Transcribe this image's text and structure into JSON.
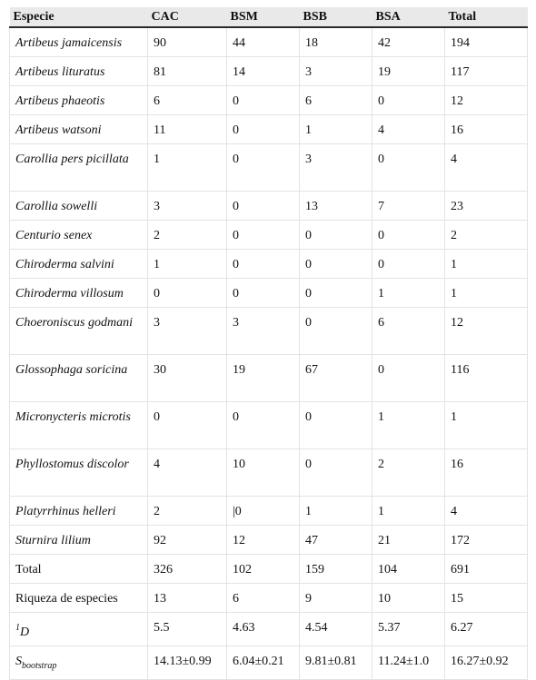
{
  "table": {
    "headers": [
      "Especie",
      "CAC",
      "BSM",
      "BSB",
      "BSA",
      "Total"
    ],
    "rows": [
      {
        "name": "Artibeus jamaicensis",
        "v": [
          "90",
          "44",
          "18",
          "42",
          "194"
        ]
      },
      {
        "name": "Artibeus lituratus",
        "v": [
          "81",
          "14",
          "3",
          "19",
          "117"
        ]
      },
      {
        "name": "Artibeus phaeotis",
        "v": [
          "6",
          "0",
          "6",
          "0",
          "12"
        ]
      },
      {
        "name": "Artibeus watsoni",
        "v": [
          "11",
          "0",
          "1",
          "4",
          "16"
        ]
      },
      {
        "name": "Carollia pers picillata",
        "v": [
          "1",
          "0",
          "3",
          "0",
          "4"
        ]
      },
      {
        "name": "Carollia sowelli",
        "v": [
          "3",
          "0",
          "13",
          "7",
          "23"
        ]
      },
      {
        "name": "Centurio senex",
        "v": [
          "2",
          "0",
          "0",
          "0",
          "2"
        ]
      },
      {
        "name": "Chiroderma salvini",
        "v": [
          "1",
          "0",
          "0",
          "0",
          "1"
        ]
      },
      {
        "name": "Chiroderma villosum",
        "v": [
          "0",
          "0",
          "0",
          "1",
          "1"
        ]
      },
      {
        "name": "Choeroniscus godmani",
        "v": [
          "3",
          "3",
          "0",
          "6",
          "12"
        ]
      },
      {
        "name": "Glossophaga soricina",
        "v": [
          "30",
          "19",
          "67",
          "0",
          "116"
        ]
      },
      {
        "name": "Micronycteris microtis",
        "v": [
          "0",
          "0",
          "0",
          "1",
          "1"
        ]
      },
      {
        "name": "Phyllostomus discolor",
        "v": [
          "4",
          "10",
          "0",
          "2",
          "16"
        ]
      },
      {
        "name": "Platyrrhinus helleri",
        "v": [
          "2",
          "|0",
          "1",
          "1",
          "4"
        ]
      },
      {
        "name": "Sturnira lilium",
        "v": [
          "92",
          "12",
          "47",
          "21",
          "172"
        ]
      }
    ],
    "total": {
      "label": "Total",
      "v": [
        "326",
        "102",
        "159",
        "104",
        "691"
      ]
    },
    "richness": {
      "label": "Riqueza de especies",
      "v": [
        "13",
        "6",
        "9",
        "10",
        "15"
      ]
    },
    "diversity": {
      "sup": "1",
      "base": "D",
      "v": [
        "5.5",
        "4.63",
        "4.54",
        "5.37",
        "6.27"
      ]
    },
    "bootstrap": {
      "base": "S",
      "sub": "bootstrap",
      "v": [
        "14.13±0.99",
        "6.04±0.21",
        "9.81±0.81",
        "11.24±1.0",
        "16.27±0.92"
      ]
    }
  }
}
